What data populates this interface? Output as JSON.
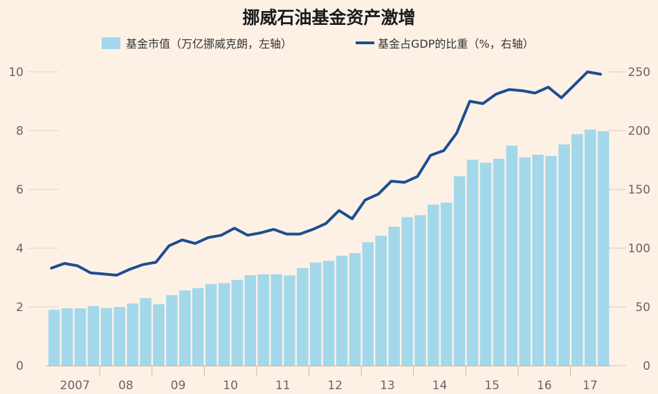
{
  "chart_data": {
    "type": "bar+line",
    "title": "挪威石油基金资产激增",
    "legend": [
      {
        "name": "基金市值（万亿挪威克朗，左轴）",
        "kind": "bar",
        "color": "#a3d8ea"
      },
      {
        "name": "基金占GDP的比重（%，右轴）",
        "kind": "line",
        "color": "#1d4e8f"
      }
    ],
    "legend_placement": "top",
    "x_tick_labels": [
      "2007",
      "08",
      "09",
      "10",
      "11",
      "12",
      "13",
      "14",
      "15",
      "16",
      "17"
    ],
    "frequency": "quarterly, 2007 Q1 – 2017 Q3",
    "left_axis": {
      "ylim": [
        0,
        10
      ],
      "ticks": [
        0,
        2,
        4,
        6,
        8,
        10
      ]
    },
    "right_axis": {
      "ylim": [
        0,
        250
      ],
      "ticks": [
        0,
        50,
        100,
        150,
        200,
        250
      ]
    },
    "series": [
      {
        "name": "基金市值（万亿挪威克朗，左轴）",
        "axis": "left",
        "type": "bar",
        "values": [
          1.9,
          1.95,
          1.95,
          2.03,
          1.96,
          2.0,
          2.12,
          2.3,
          2.09,
          2.4,
          2.56,
          2.64,
          2.78,
          2.81,
          2.92,
          3.08,
          3.11,
          3.11,
          3.07,
          3.32,
          3.51,
          3.57,
          3.74,
          3.83,
          4.2,
          4.42,
          4.73,
          5.05,
          5.12,
          5.48,
          5.55,
          6.45,
          7.01,
          6.91,
          7.04,
          7.49,
          7.09,
          7.18,
          7.14,
          7.53,
          7.88,
          8.04,
          7.98
        ]
      },
      {
        "name": "基金占GDP的比重（%，右轴）",
        "axis": "right",
        "type": "line",
        "values": [
          83,
          87,
          85,
          79,
          78,
          77,
          82,
          86,
          88,
          102,
          107,
          104,
          109,
          111,
          117,
          111,
          113,
          116,
          112,
          112,
          116,
          121,
          132,
          125,
          141,
          146,
          157,
          156,
          161,
          179,
          183,
          198,
          225,
          223,
          231,
          235,
          234,
          232,
          237,
          228,
          239,
          250,
          248
        ]
      }
    ],
    "grid": false
  }
}
